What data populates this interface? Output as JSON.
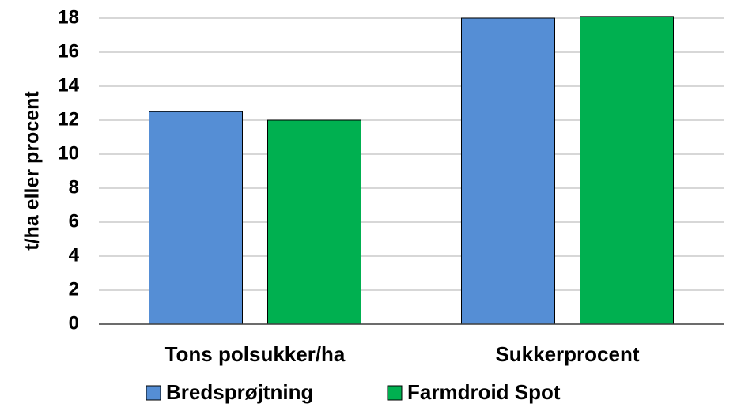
{
  "chart_data": {
    "type": "bar",
    "y_label": "t/ha eller procent",
    "categories": [
      "Tons polsukker/ha",
      "Sukkerprocent"
    ],
    "series": [
      {
        "name": "Bredsprøjtning",
        "color": "#558ed5",
        "values": [
          12.5,
          18.0
        ]
      },
      {
        "name": "Farmdroid Spot",
        "color": "#00b050",
        "values": [
          12.0,
          18.1
        ]
      }
    ],
    "ylim": [
      0,
      18
    ],
    "yticks": [
      0,
      2,
      4,
      6,
      8,
      10,
      12,
      14,
      16,
      18
    ],
    "grid": true,
    "legend": "bottom"
  }
}
